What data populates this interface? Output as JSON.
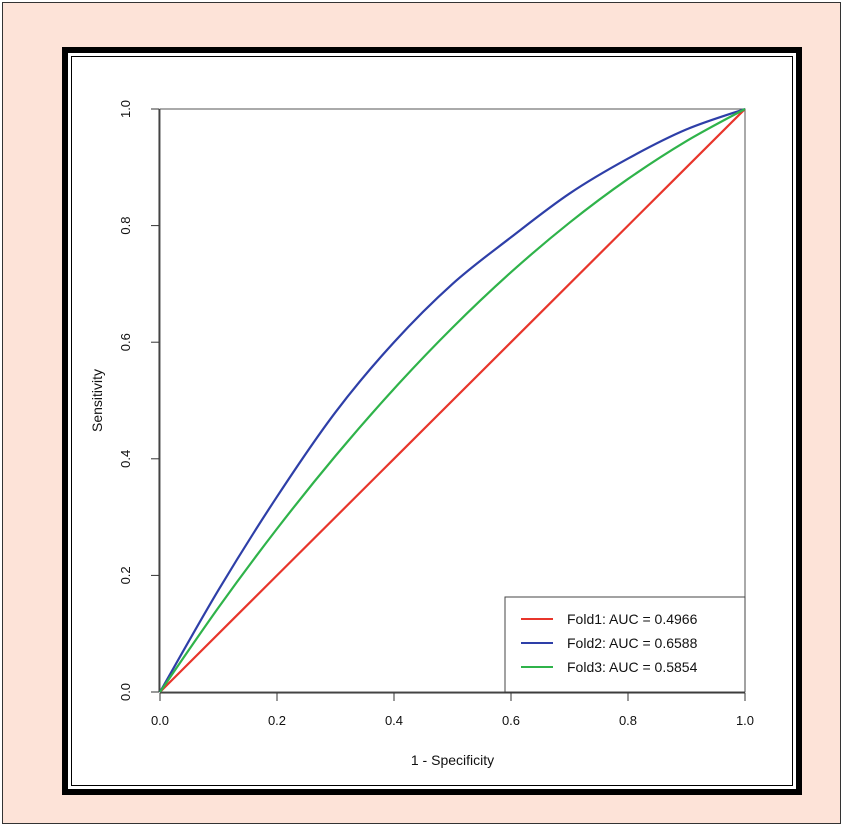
{
  "chart_data": {
    "type": "line",
    "title": "",
    "xlabel": "1 - Specificity",
    "ylabel": "Sensitivity",
    "xlim": [
      0.0,
      1.0
    ],
    "ylim": [
      0.0,
      1.0
    ],
    "x_ticks": [
      "0.0",
      "0.2",
      "0.4",
      "0.6",
      "0.8",
      "1.0"
    ],
    "y_ticks": [
      "0.0",
      "0.2",
      "0.4",
      "0.6",
      "0.8",
      "1.0"
    ],
    "grid": false,
    "legend_position": "bottom-right",
    "series": [
      {
        "name": "Fold1: AUC = 0.4966",
        "color": "#e8352b",
        "x": [
          0.0,
          0.2,
          0.4,
          0.6,
          0.8,
          1.0
        ],
        "y": [
          0.0,
          0.2,
          0.4,
          0.6,
          0.8,
          1.0
        ]
      },
      {
        "name": "Fold2: AUC = 0.6588",
        "color": "#2e3fa8",
        "x": [
          0.0,
          0.1,
          0.2,
          0.3,
          0.4,
          0.5,
          0.6,
          0.7,
          0.8,
          0.9,
          1.0
        ],
        "y": [
          0.0,
          0.175,
          0.335,
          0.48,
          0.6,
          0.7,
          0.78,
          0.855,
          0.915,
          0.965,
          1.0
        ]
      },
      {
        "name": "Fold3: AUC = 0.5854",
        "color": "#2fb34a",
        "x": [
          0.0,
          0.1,
          0.2,
          0.3,
          0.4,
          0.5,
          0.6,
          0.7,
          0.8,
          0.9,
          1.0
        ],
        "y": [
          0.0,
          0.145,
          0.28,
          0.405,
          0.52,
          0.625,
          0.72,
          0.805,
          0.88,
          0.945,
          1.0
        ]
      }
    ]
  }
}
